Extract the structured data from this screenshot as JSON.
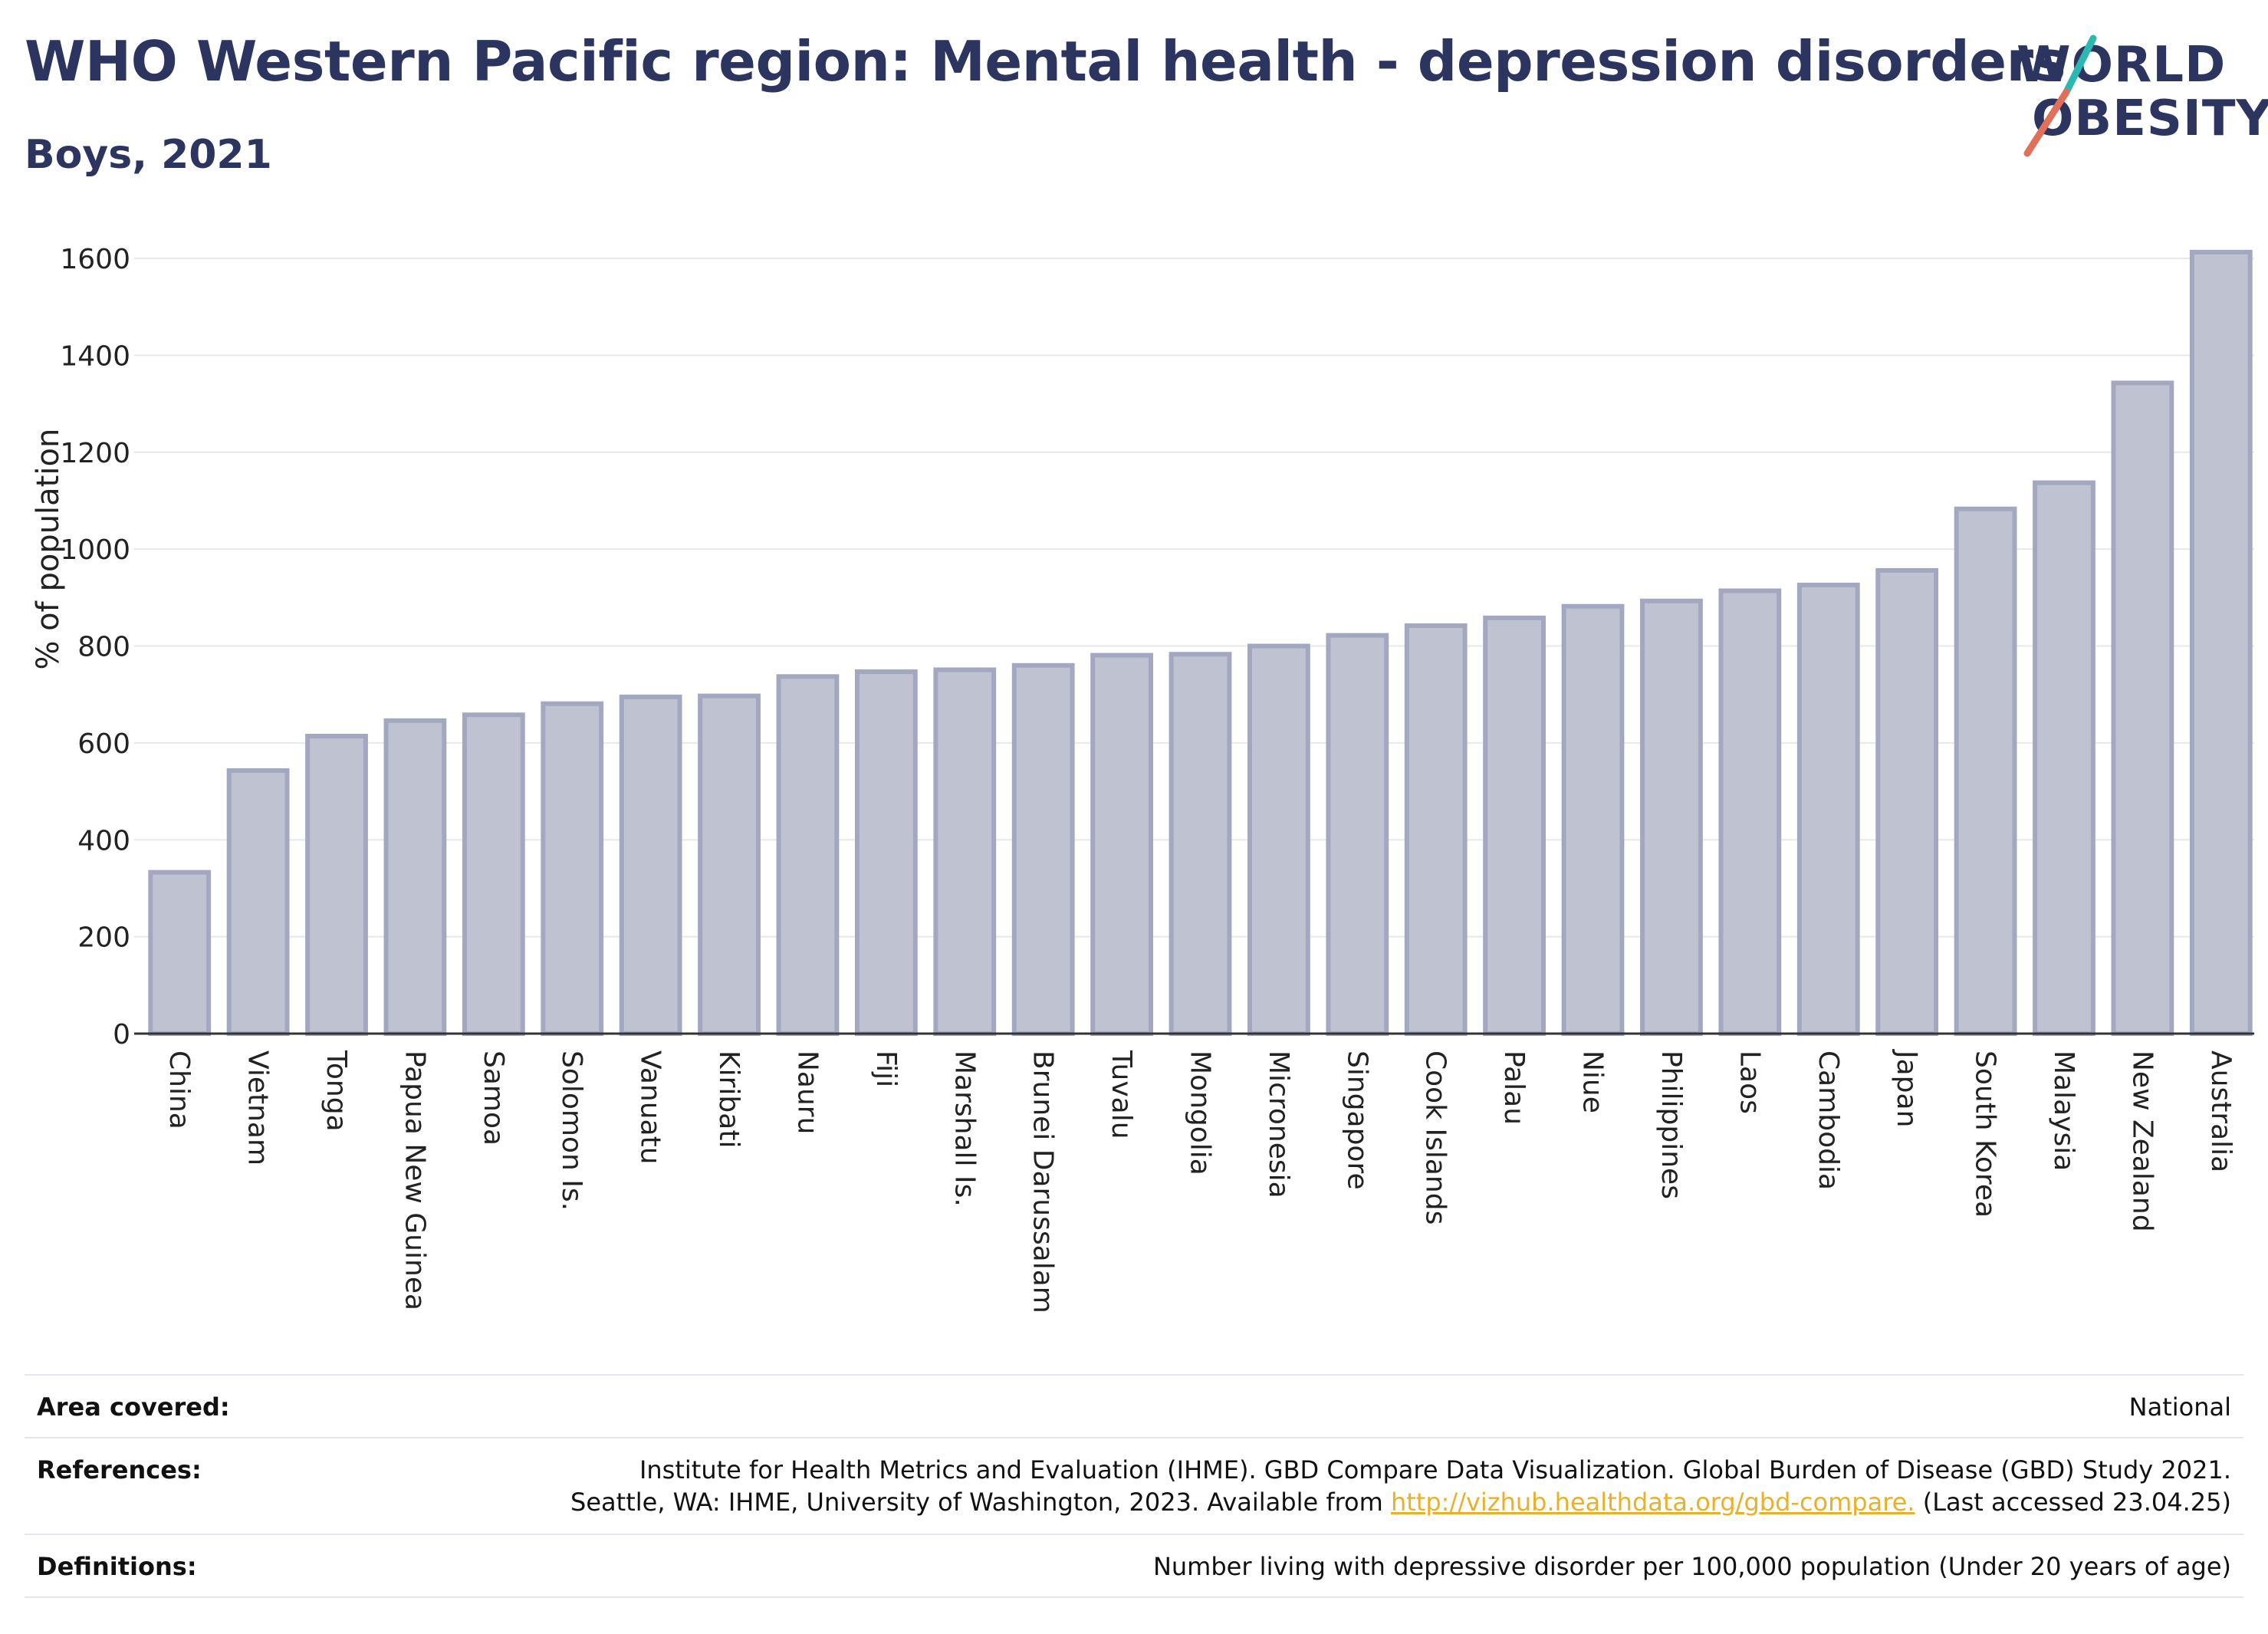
{
  "header": {
    "title": "WHO Western Pacific region: Mental health - depression disorders",
    "subtitle": "Boys, 2021"
  },
  "logo": {
    "line1": "WORLD",
    "line2": "OBESITY"
  },
  "chart_data": {
    "type": "bar",
    "ylabel": "% of population",
    "xlabel": "",
    "ylim": [
      0,
      1650
    ],
    "yticks": [
      0,
      200,
      400,
      600,
      800,
      1000,
      1200,
      1400,
      1600
    ],
    "grid": true,
    "bar_color": "#bfc2d1",
    "bar_edge_color": "#a3a8c0",
    "categories": [
      "China",
      "Vietnam",
      "Tonga",
      "Papua New Guinea",
      "Samoa",
      "Solomon Is.",
      "Vanuatu",
      "Kiribati",
      "Nauru",
      "Fiji",
      "Marshall Is.",
      "Brunei Darussalam",
      "Tuvalu",
      "Mongolia",
      "Micronesia",
      "Singapore",
      "Cook Islands",
      "Palau",
      "Niue",
      "Philippines",
      "Laos",
      "Cambodia",
      "Japan",
      "South Korea",
      "Malaysia",
      "New Zealand",
      "Australia"
    ],
    "values": [
      333,
      543,
      614,
      646,
      658,
      681,
      695,
      697,
      737,
      747,
      751,
      760,
      781,
      783,
      800,
      822,
      842,
      858,
      882,
      893,
      914,
      926,
      956,
      1083,
      1137,
      1343,
      1613
    ]
  },
  "footer": {
    "area_label": "Area covered:",
    "area_value": "National",
    "refs_label": "References:",
    "refs_line1": "Institute for Health Metrics and Evaluation (IHME). GBD Compare Data Visualization. Global Burden of Disease (GBD) Study 2021.",
    "refs_line2_pre": "Seattle, WA: IHME, University of Washington, 2023. Available from ",
    "refs_link": "http://vizhub.healthdata.org/gbd-compare.",
    "refs_line2_post": " (Last accessed 23.04.25)",
    "defs_label": "Definitions:",
    "defs_value": "Number living with depressive disorder per 100,000 population (Under 20 years of age)"
  }
}
